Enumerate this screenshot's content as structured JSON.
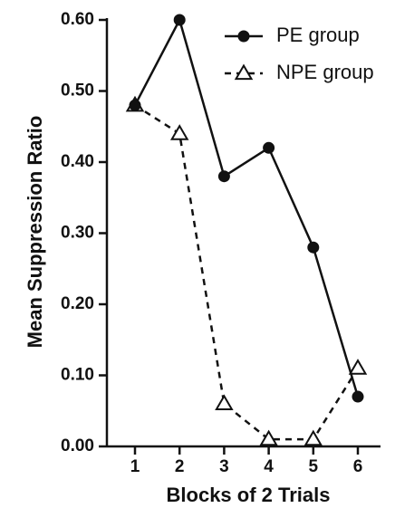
{
  "chart_data": {
    "type": "line",
    "xlabel": "Blocks of 2 Trials",
    "ylabel": "Mean Suppression Ratio",
    "x": [
      1,
      2,
      3,
      4,
      5,
      6
    ],
    "x_tick_labels": [
      "1",
      "2",
      "3",
      "4",
      "5",
      "6"
    ],
    "y_tick_labels": [
      "0.00",
      "0.10",
      "0.20",
      "0.30",
      "0.40",
      "0.50",
      "0.60"
    ],
    "ylim": [
      0,
      0.6
    ],
    "xlim": [
      0.5,
      6.5
    ],
    "grid": false,
    "legend_position": "top-right",
    "series": [
      {
        "name": "PE group",
        "marker": "filled-circle",
        "line_style": "solid",
        "color": "#111111",
        "values": [
          0.48,
          0.6,
          0.38,
          0.42,
          0.28,
          0.07
        ]
      },
      {
        "name": "NPE group",
        "marker": "open-triangle",
        "line_style": "dashed",
        "color": "#111111",
        "values": [
          0.48,
          0.44,
          0.06,
          0.01,
          0.01,
          0.11
        ]
      }
    ]
  }
}
